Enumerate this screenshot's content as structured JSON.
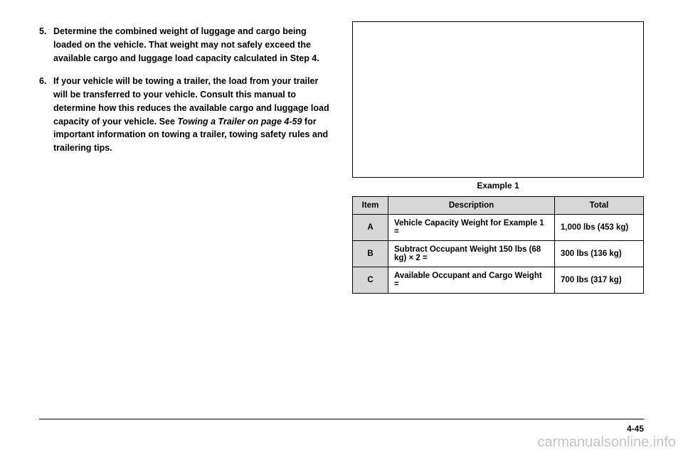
{
  "list": {
    "items": [
      {
        "num": "5.",
        "text": "Determine the combined weight of luggage and cargo being loaded on the vehicle. That weight may not safely exceed the available cargo and luggage load capacity calculated in Step 4."
      },
      {
        "num": "6.",
        "text_before": "If your vehicle will be towing a trailer, the load from your trailer will be transferred to your vehicle. Consult this manual to determine how this reduces the available cargo and luggage load capacity of your vehicle. See ",
        "text_italic": "Towing a Trailer on page 4-59",
        "text_after": " for important information on towing a trailer, towing safety rules and trailering tips."
      }
    ]
  },
  "figure": {
    "caption": "Example 1"
  },
  "table": {
    "headers": [
      "Item",
      "Description",
      "Total"
    ],
    "rows": [
      {
        "item": "A",
        "desc": "Vehicle Capacity Weight for Example 1 =",
        "total": "1,000 lbs (453 kg)"
      },
      {
        "item": "B",
        "desc": "Subtract Occupant Weight 150 lbs (68 kg) × 2 =",
        "total": "300 lbs (136 kg)"
      },
      {
        "item": "C",
        "desc": "Available Occupant and Cargo Weight =",
        "total": "700 lbs (317 kg)"
      }
    ]
  },
  "footer": {
    "page_num": "4-45",
    "watermark": "carmanualsonline.info"
  }
}
